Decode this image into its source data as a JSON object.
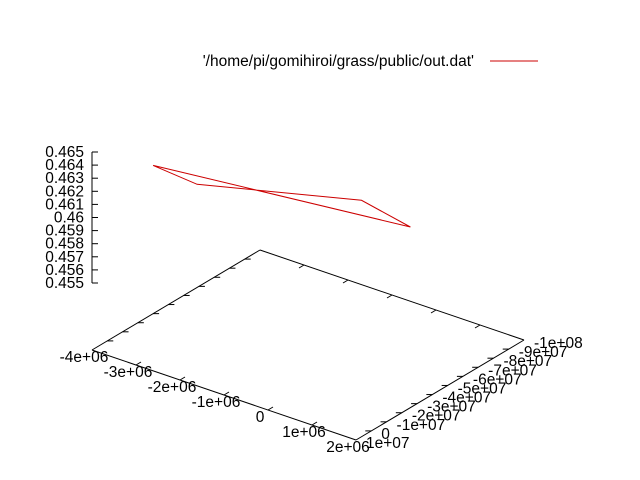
{
  "chart_data": {
    "type": "line",
    "projection": "3d-splot",
    "series": [
      {
        "name": "'/home/pi/gomihiroi/grass/public/out.dat'",
        "color": "#cc0000",
        "points": [
          {
            "x": -4000000,
            "y": -30000000,
            "z": 0.4612
          },
          {
            "x": -3000000,
            "y": -30000000,
            "z": 0.4609
          },
          {
            "x": -1000000,
            "y": -80000000,
            "z": 0.4585
          },
          {
            "x": 1500000,
            "y": -40000000,
            "z": 0.4621
          },
          {
            "x": -4000000,
            "y": -30000000,
            "z": 0.4612
          }
        ]
      }
    ],
    "xlim": [
      -4000000,
      2000000
    ],
    "ylim": [
      -100000000,
      10000000
    ],
    "zlim": [
      0.455,
      0.465
    ],
    "x_ticks": [
      "-4e+06",
      "-3e+06",
      "-2e+06",
      "-1e+06",
      "0",
      "1e+06",
      "2e+06"
    ],
    "y_ticks": [
      "-1e+08",
      "-9e+07",
      "-8e+07",
      "-7e+07",
      "-6e+07",
      "-5e+07",
      "-4e+07",
      "-3e+07",
      "-2e+07",
      "-1e+07",
      "0",
      "1e+07"
    ],
    "z_ticks": [
      "0.455",
      "0.456",
      "0.457",
      "0.458",
      "0.459",
      "0.46",
      "0.461",
      "0.462",
      "0.463",
      "0.464",
      "0.465"
    ],
    "legend_position": "top-right",
    "grid": false
  }
}
